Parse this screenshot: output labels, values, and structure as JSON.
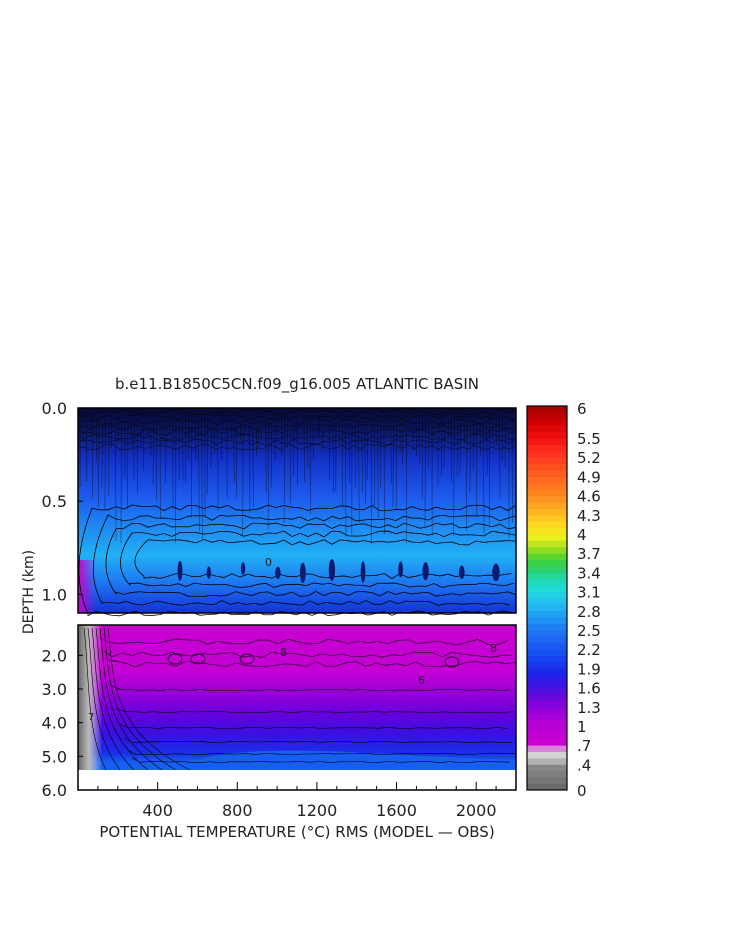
{
  "chart_data": {
    "type": "heatmap",
    "title": "b.e11.B1850C5CN.f09_g16.005 ATLANTIC BASIN",
    "xlabel": "POTENTIAL TEMPERATURE (°C) RMS (MODEL — OBS)",
    "ylabel": "DEPTH (km)",
    "x_ticks": [
      "400",
      "800",
      "1200",
      "1600",
      "2000"
    ],
    "x_tick_values": [
      400,
      800,
      1200,
      1600,
      2000
    ],
    "xlim": [
      0,
      2200
    ],
    "upper_panel": {
      "ylim": [
        0.0,
        1.1
      ],
      "y_ticks": [
        "0.0",
        "0.5",
        "1.0"
      ],
      "y_tick_values": [
        0.0,
        0.5,
        1.0
      ]
    },
    "lower_panel": {
      "ylim": [
        1.1,
        6.0
      ],
      "y_ticks": [
        "2.0",
        "3.0",
        "4.0",
        "5.0",
        "6.0"
      ],
      "y_tick_values": [
        2.0,
        3.0,
        4.0,
        5.0,
        6.0
      ]
    },
    "colorbar": {
      "labels": [
        "6",
        "5.5",
        "5.2",
        "4.9",
        "4.6",
        "4.3",
        "4",
        "3.7",
        "3.4",
        "3.1",
        "2.8",
        "2.5",
        "2.2",
        "1.9",
        "1.6",
        "1.3",
        "1",
        ".7",
        ".4",
        "0"
      ],
      "label_values": [
        6,
        5.5,
        5.2,
        4.9,
        4.6,
        4.3,
        4,
        3.7,
        3.4,
        3.1,
        2.8,
        2.5,
        2.2,
        1.9,
        1.6,
        1.3,
        1,
        0.7,
        0.4,
        0
      ],
      "range": [
        0,
        6
      ]
    },
    "contour_labels": [
      "0",
      "8",
      "6",
      "7"
    ]
  }
}
